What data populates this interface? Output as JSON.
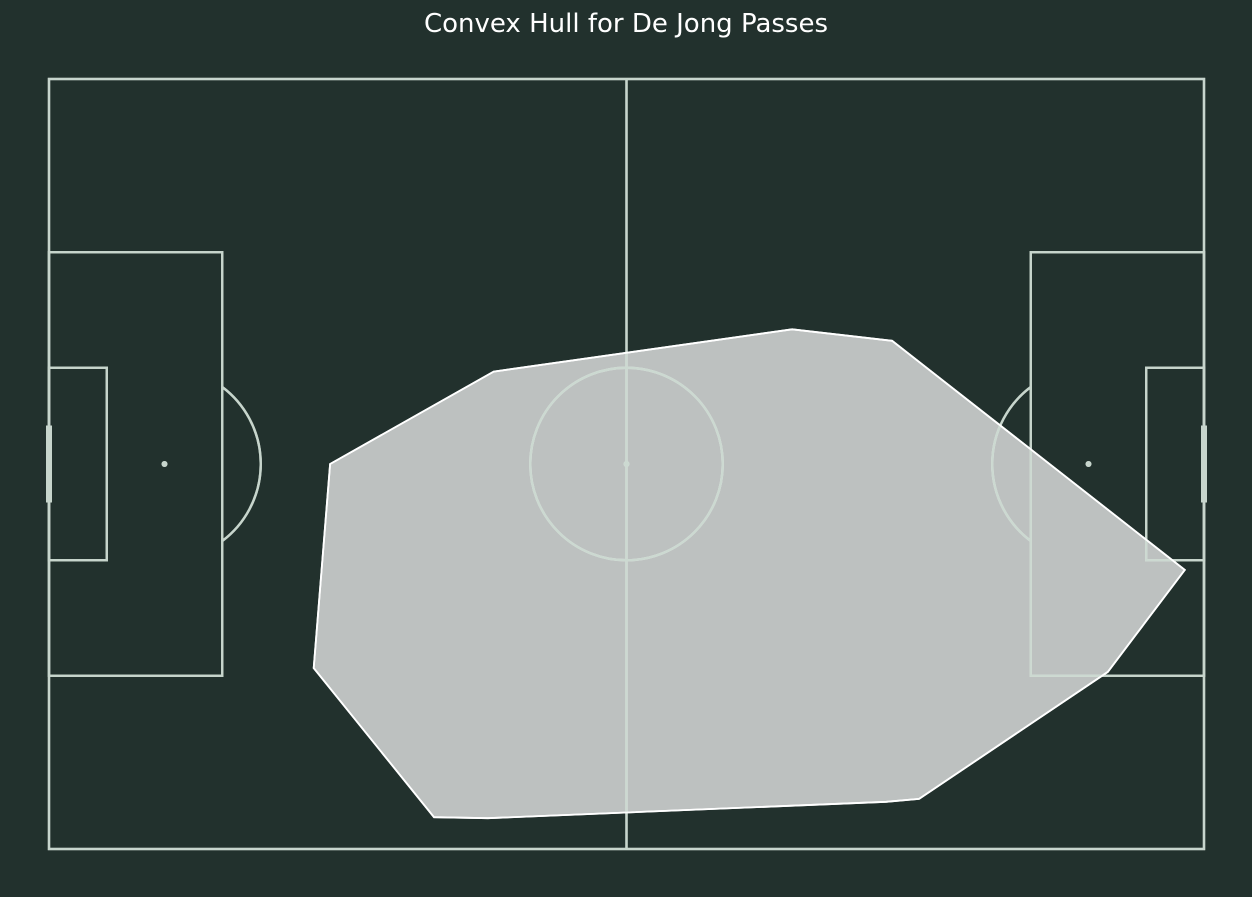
{
  "chart_data": {
    "type": "pitch-convex-hull",
    "title": "Convex Hull for De Jong Passes",
    "pitch": {
      "length": 120,
      "width": 80,
      "line_color": "#c7d5cc",
      "background": "#22312d"
    },
    "hull": {
      "color": "#ffffff",
      "fill_opacity": 0.7,
      "points": [
        {
          "x": 29.2,
          "y": 40.0
        },
        {
          "x": 46.2,
          "y": 30.4
        },
        {
          "x": 77.2,
          "y": 26.0
        },
        {
          "x": 87.6,
          "y": 27.2
        },
        {
          "x": 118.0,
          "y": 51.0
        },
        {
          "x": 110.0,
          "y": 61.6
        },
        {
          "x": 90.4,
          "y": 74.8
        },
        {
          "x": 87.0,
          "y": 75.1
        },
        {
          "x": 45.6,
          "y": 76.8
        },
        {
          "x": 40.0,
          "y": 76.7
        },
        {
          "x": 27.5,
          "y": 61.2
        }
      ]
    }
  }
}
